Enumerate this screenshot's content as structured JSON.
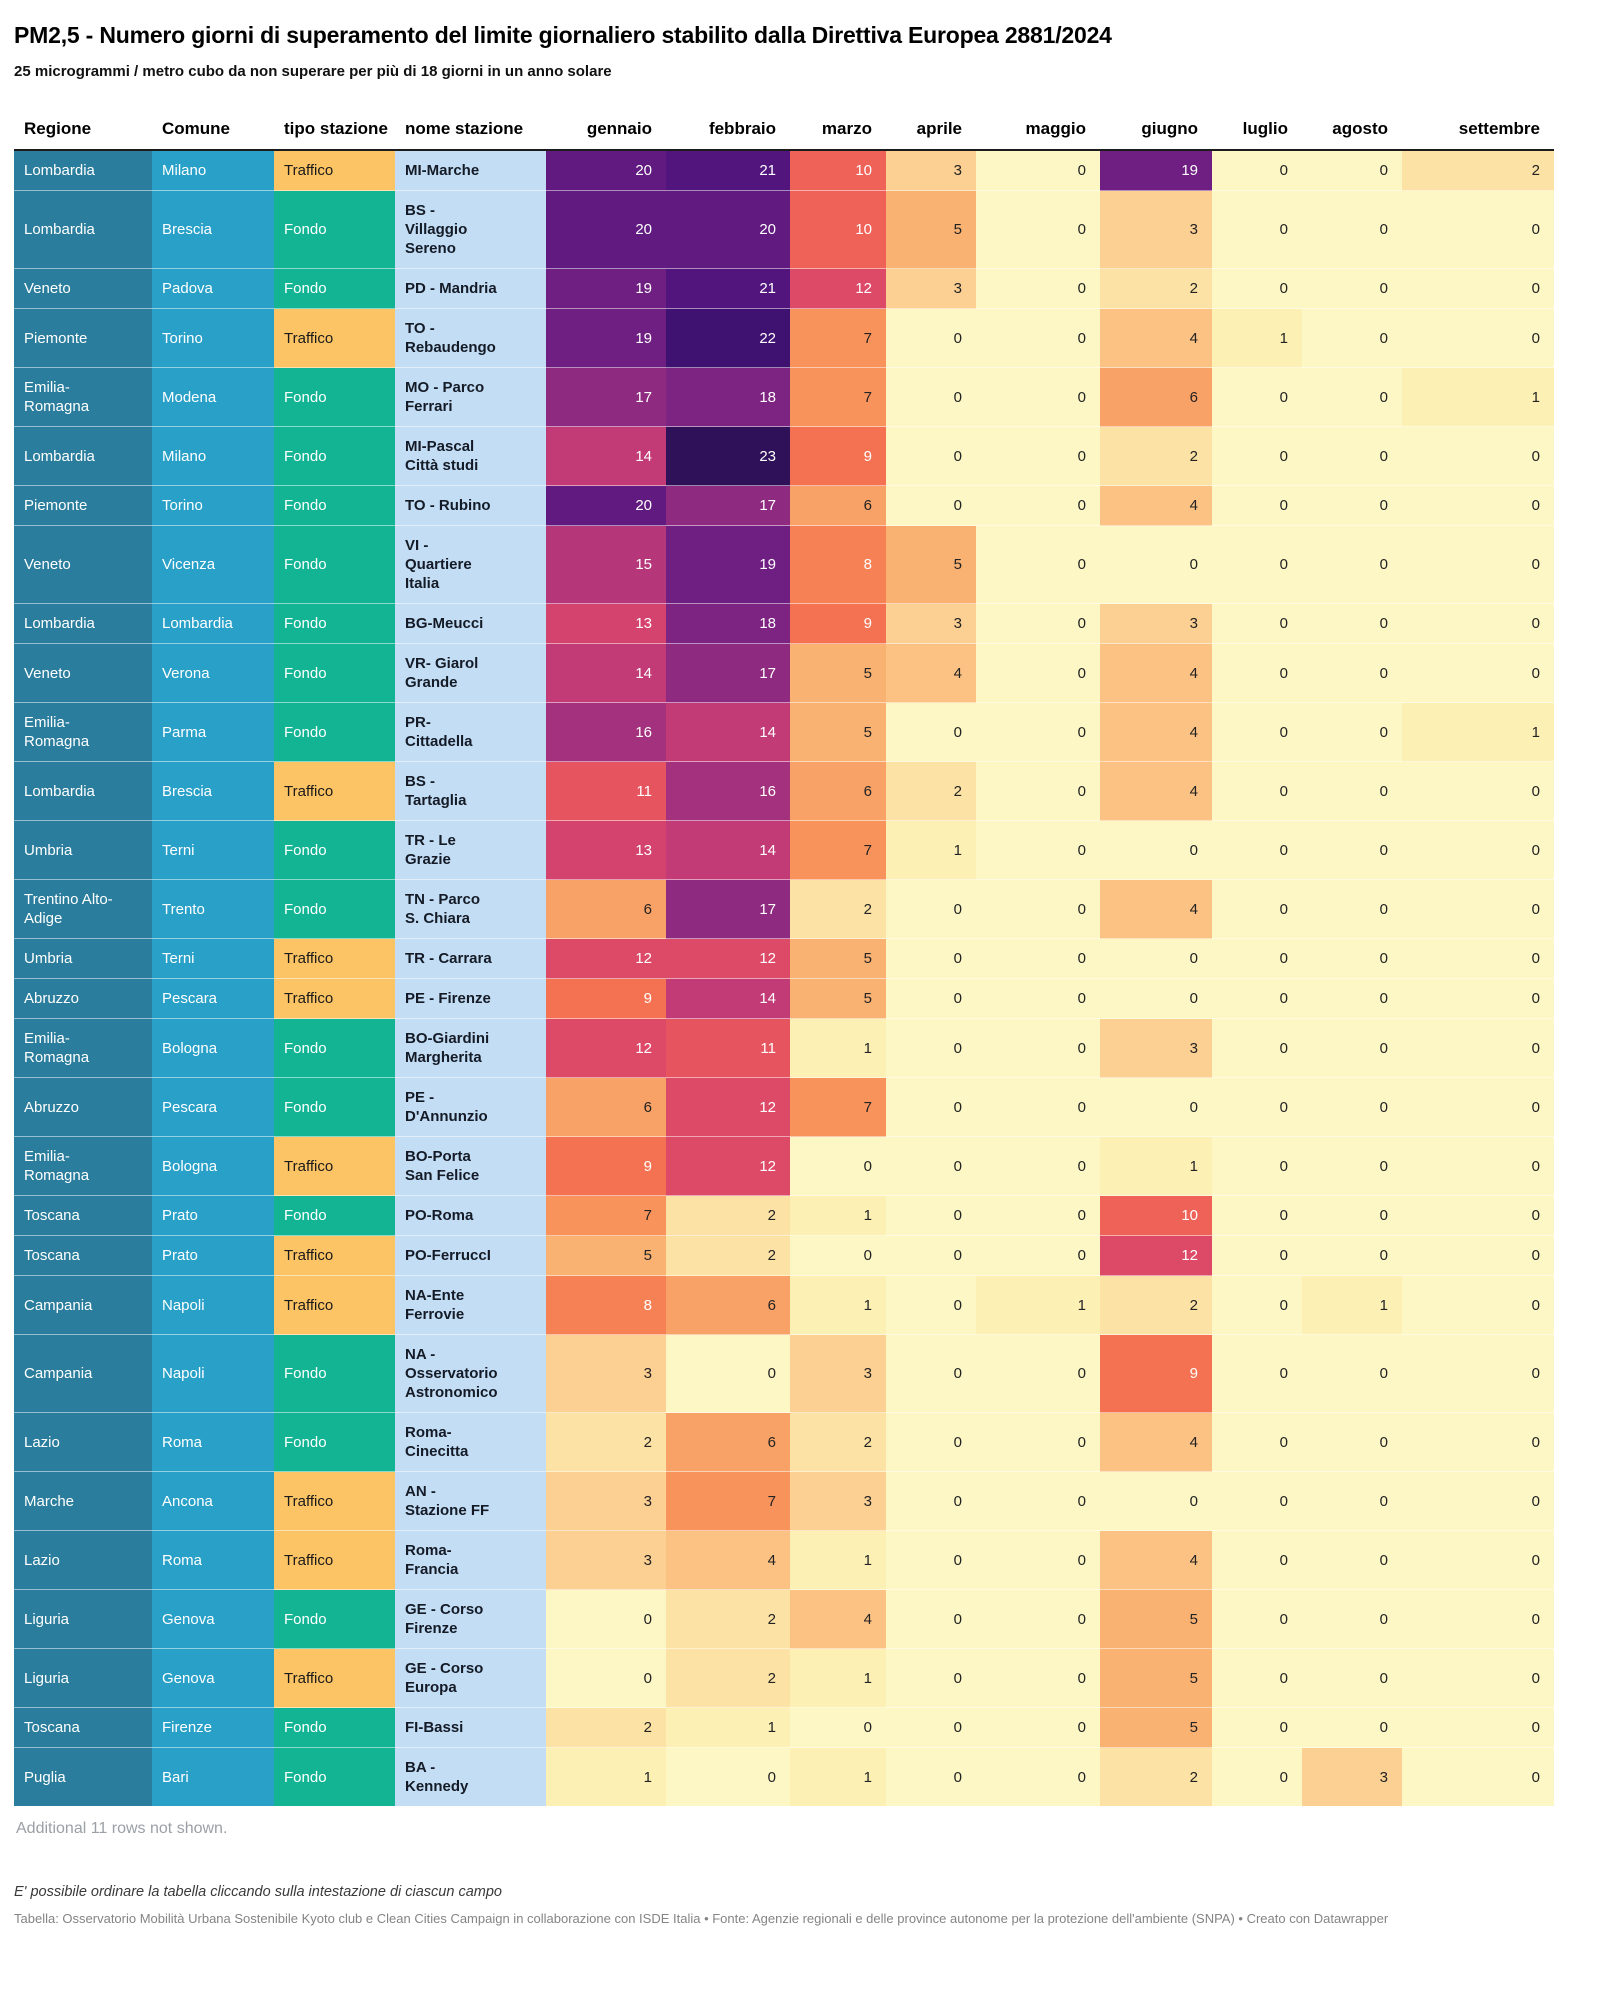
{
  "header": {
    "title": "PM2,5 - Numero giorni di superamento del limite giornaliero stabilito dalla Direttiva Europea 2881/2024",
    "subtitle": "25 microgrammi / metro cubo da non superare per più di 18 giorni in un anno solare"
  },
  "footer": {
    "more_rows_note": "Additional 11 rows not shown.",
    "sort_hint": "E' possibile ordinare la tabella cliccando sulla intestazione di ciascun campo",
    "source": "Tabella: Osservatorio Mobilità Urbana Sostenibile Kyoto club e Clean Cities Campaign in collaborazione con ISDE Italia • Fonte: Agenzie regionali e delle province autonome per la protezione dell'ambiente (SNPA) • Creato con Datawrapper"
  },
  "colors": {
    "regione_bg": "#2a7d9c",
    "comune_bg": "#28a0c8",
    "fondo_bg": "#12b493",
    "traffico_bg": "#fcc464",
    "nome_bg": "#c3ddf5",
    "fondo_text": "#ffffff",
    "traffico_text": "#1a1a1a",
    "heat_text_dark": "#222222",
    "heat_text_light": "#ffffff",
    "white_text_threshold": 8,
    "heat_scale": {
      "0": "#fcf7c5",
      "1": "#fcf0b5",
      "2": "#fce3a5",
      "3": "#fccf93",
      "4": "#fbc283",
      "5": "#fab273",
      "6": "#f9a267",
      "7": "#f8935c",
      "8": "#f68155",
      "9": "#f47251",
      "10": "#ee6258",
      "11": "#e6555f",
      "12": "#dd4a67",
      "13": "#d4436e",
      "14": "#c23b76",
      "15": "#b6367a",
      "16": "#a4317e",
      "17": "#8e2b80",
      "18": "#7d2482",
      "19": "#6e1f81",
      "20": "#601a80",
      "21": "#51157d",
      "22": "#3f1170",
      "23": "#2e1158"
    }
  },
  "chart_data": {
    "type": "table",
    "columns": [
      {
        "key": "regione",
        "label": "Regione"
      },
      {
        "key": "comune",
        "label": "Comune"
      },
      {
        "key": "tipo",
        "label": "tipo stazione"
      },
      {
        "key": "nome",
        "label": "nome stazione"
      },
      {
        "key": "gennaio",
        "label": "gennaio"
      },
      {
        "key": "febbraio",
        "label": "febbraio"
      },
      {
        "key": "marzo",
        "label": "marzo"
      },
      {
        "key": "aprile",
        "label": "aprile"
      },
      {
        "key": "maggio",
        "label": "maggio"
      },
      {
        "key": "giugno",
        "label": "giugno"
      },
      {
        "key": "luglio",
        "label": "luglio"
      },
      {
        "key": "agosto",
        "label": "agosto"
      },
      {
        "key": "settembre",
        "label": "settembre"
      }
    ],
    "rows": [
      {
        "regione": "Lombardia",
        "comune": "Milano",
        "tipo": "Traffico",
        "nome": "MI-Marche",
        "values": [
          20,
          21,
          10,
          3,
          0,
          19,
          0,
          0,
          2
        ]
      },
      {
        "regione": "Lombardia",
        "comune": "Brescia",
        "tipo": "Fondo",
        "nome": "BS - Villaggio Sereno",
        "values": [
          20,
          20,
          10,
          5,
          0,
          3,
          0,
          0,
          0
        ]
      },
      {
        "regione": "Veneto",
        "comune": "Padova",
        "tipo": "Fondo",
        "nome": "PD - Mandria",
        "values": [
          19,
          21,
          12,
          3,
          0,
          2,
          0,
          0,
          0
        ]
      },
      {
        "regione": "Piemonte",
        "comune": "Torino",
        "tipo": "Traffico",
        "nome": "TO - Rebaudengo",
        "values": [
          19,
          22,
          7,
          0,
          0,
          4,
          1,
          0,
          0
        ]
      },
      {
        "regione": "Emilia-Romagna",
        "comune": "Modena",
        "tipo": "Fondo",
        "nome": "MO - Parco Ferrari",
        "values": [
          17,
          18,
          7,
          0,
          0,
          6,
          0,
          0,
          1
        ]
      },
      {
        "regione": "Lombardia",
        "comune": "Milano",
        "tipo": "Fondo",
        "nome": "MI-Pascal Città studi",
        "values": [
          14,
          23,
          9,
          0,
          0,
          2,
          0,
          0,
          0
        ]
      },
      {
        "regione": "Piemonte",
        "comune": "Torino",
        "tipo": "Fondo",
        "nome": "TO - Rubino",
        "values": [
          20,
          17,
          6,
          0,
          0,
          4,
          0,
          0,
          0
        ]
      },
      {
        "regione": "Veneto",
        "comune": "Vicenza",
        "tipo": "Fondo",
        "nome": "VI - Quartiere Italia",
        "values": [
          15,
          19,
          8,
          5,
          0,
          0,
          0,
          0,
          0
        ]
      },
      {
        "regione": "Lombardia",
        "comune": "Lombardia",
        "tipo": "Fondo",
        "nome": "BG-Meucci",
        "values": [
          13,
          18,
          9,
          3,
          0,
          3,
          0,
          0,
          0
        ]
      },
      {
        "regione": "Veneto",
        "comune": "Verona",
        "tipo": "Fondo",
        "nome": "VR- Giarol Grande",
        "values": [
          14,
          17,
          5,
          4,
          0,
          4,
          0,
          0,
          0
        ]
      },
      {
        "regione": "Emilia-Romagna",
        "comune": "Parma",
        "tipo": "Fondo",
        "nome": "PR-Cittadella",
        "values": [
          16,
          14,
          5,
          0,
          0,
          4,
          0,
          0,
          1
        ]
      },
      {
        "regione": "Lombardia",
        "comune": "Brescia",
        "tipo": "Traffico",
        "nome": "BS - Tartaglia",
        "values": [
          11,
          16,
          6,
          2,
          0,
          4,
          0,
          0,
          0
        ]
      },
      {
        "regione": "Umbria",
        "comune": "Terni",
        "tipo": "Fondo",
        "nome": "TR - Le Grazie",
        "values": [
          13,
          14,
          7,
          1,
          0,
          0,
          0,
          0,
          0
        ]
      },
      {
        "regione": "Trentino Alto-Adige",
        "comune": "Trento",
        "tipo": "Fondo",
        "nome": "TN - Parco S. Chiara",
        "values": [
          6,
          17,
          2,
          0,
          0,
          4,
          0,
          0,
          0
        ]
      },
      {
        "regione": "Umbria",
        "comune": "Terni",
        "tipo": "Traffico",
        "nome": "TR - Carrara",
        "values": [
          12,
          12,
          5,
          0,
          0,
          0,
          0,
          0,
          0
        ]
      },
      {
        "regione": "Abruzzo",
        "comune": "Pescara",
        "tipo": "Traffico",
        "nome": "PE - Firenze",
        "values": [
          9,
          14,
          5,
          0,
          0,
          0,
          0,
          0,
          0
        ]
      },
      {
        "regione": "Emilia-Romagna",
        "comune": "Bologna",
        "tipo": "Fondo",
        "nome": "BO-Giardini Margherita",
        "values": [
          12,
          11,
          1,
          0,
          0,
          3,
          0,
          0,
          0
        ]
      },
      {
        "regione": "Abruzzo",
        "comune": "Pescara",
        "tipo": "Fondo",
        "nome": "PE - D'Annunzio",
        "values": [
          6,
          12,
          7,
          0,
          0,
          0,
          0,
          0,
          0
        ]
      },
      {
        "regione": "Emilia-Romagna",
        "comune": "Bologna",
        "tipo": "Traffico",
        "nome": "BO-Porta San Felice",
        "values": [
          9,
          12,
          0,
          0,
          0,
          1,
          0,
          0,
          0
        ]
      },
      {
        "regione": "Toscana",
        "comune": "Prato",
        "tipo": "Fondo",
        "nome": "PO-Roma",
        "values": [
          7,
          2,
          1,
          0,
          0,
          10,
          0,
          0,
          0
        ]
      },
      {
        "regione": "Toscana",
        "comune": "Prato",
        "tipo": "Traffico",
        "nome": "PO-FerruccI",
        "values": [
          5,
          2,
          0,
          0,
          0,
          12,
          0,
          0,
          0
        ]
      },
      {
        "regione": "Campania",
        "comune": "Napoli",
        "tipo": "Traffico",
        "nome": "NA-Ente Ferrovie",
        "values": [
          8,
          6,
          1,
          0,
          1,
          2,
          0,
          1,
          0
        ]
      },
      {
        "regione": "Campania",
        "comune": "Napoli",
        "tipo": "Fondo",
        "nome": "NA - Osservatorio Astronomico",
        "values": [
          3,
          0,
          3,
          0,
          0,
          9,
          0,
          0,
          0
        ]
      },
      {
        "regione": "Lazio",
        "comune": "Roma",
        "tipo": "Fondo",
        "nome": "Roma-Cinecitta",
        "values": [
          2,
          6,
          2,
          0,
          0,
          4,
          0,
          0,
          0
        ]
      },
      {
        "regione": "Marche",
        "comune": "Ancona",
        "tipo": "Traffico",
        "nome": "AN - Stazione FF",
        "values": [
          3,
          7,
          3,
          0,
          0,
          0,
          0,
          0,
          0
        ]
      },
      {
        "regione": "Lazio",
        "comune": "Roma",
        "tipo": "Traffico",
        "nome": "Roma-Francia",
        "values": [
          3,
          4,
          1,
          0,
          0,
          4,
          0,
          0,
          0
        ]
      },
      {
        "regione": "Liguria",
        "comune": "Genova",
        "tipo": "Fondo",
        "nome": "GE - Corso Firenze",
        "values": [
          0,
          2,
          4,
          0,
          0,
          5,
          0,
          0,
          0
        ]
      },
      {
        "regione": "Liguria",
        "comune": "Genova",
        "tipo": "Traffico",
        "nome": "GE - Corso Europa",
        "values": [
          0,
          2,
          1,
          0,
          0,
          5,
          0,
          0,
          0
        ]
      },
      {
        "regione": "Toscana",
        "comune": "Firenze",
        "tipo": "Fondo",
        "nome": "FI-Bassi",
        "values": [
          2,
          1,
          0,
          0,
          0,
          5,
          0,
          0,
          0
        ]
      },
      {
        "regione": "Puglia",
        "comune": "Bari",
        "tipo": "Fondo",
        "nome": "BA - Kennedy",
        "values": [
          1,
          0,
          1,
          0,
          0,
          2,
          0,
          3,
          0
        ]
      }
    ]
  }
}
